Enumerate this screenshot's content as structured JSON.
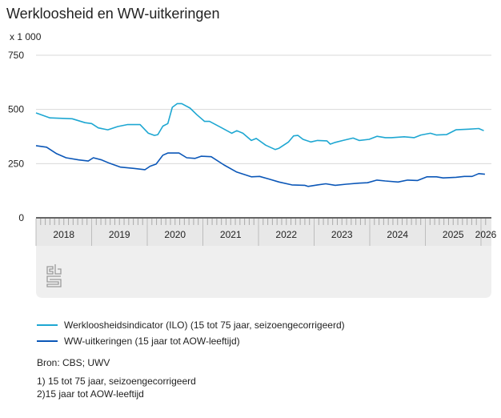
{
  "title": "Werkloosheid en WW-uitkeringen",
  "source": "Bron: CBS; UWV",
  "footnotes": [
    "1) 15 tot 75 jaar, seizoengecorrigeerd",
    "2)15 jaar tot AOW-leeftijd"
  ],
  "logo_text": "cbs",
  "chart_data": {
    "type": "line",
    "title": "Werkloosheid en WW-uitkeringen",
    "ylabel": "x 1 000",
    "ylim": [
      0,
      750
    ],
    "yticks": [
      0,
      250,
      500,
      750
    ],
    "ytick_labels": [
      "0",
      "250",
      "500",
      "750"
    ],
    "xlim": [
      2018.0,
      2026.1
    ],
    "xtick_labels": [
      "2018",
      "2019",
      "2020",
      "2021",
      "2022",
      "2023",
      "2024",
      "2025",
      "2026"
    ],
    "grid": true,
    "legend_position": "bottom",
    "series": [
      {
        "name": "Werkloosheidsindicator (ILO) (15 tot 75 jaar, seizoengecorrigeerd)",
        "color": "#1ea7d2",
        "x": [
          2018.0,
          2018.25,
          2018.65,
          2018.88,
          2019.0,
          2019.12,
          2019.29,
          2019.47,
          2019.64,
          2019.87,
          2020.02,
          2020.13,
          2020.19,
          2020.28,
          2020.37,
          2020.45,
          2020.54,
          2020.62,
          2020.77,
          2020.89,
          2021.03,
          2021.12,
          2021.32,
          2021.52,
          2021.61,
          2021.72,
          2021.87,
          2021.96,
          2022.13,
          2022.3,
          2022.37,
          2022.54,
          2022.63,
          2022.71,
          2022.8,
          2022.94,
          2023.06,
          2023.23,
          2023.29,
          2023.38,
          2023.52,
          2023.7,
          2023.81,
          2023.99,
          2024.13,
          2024.28,
          2024.39,
          2024.62,
          2024.8,
          2024.92,
          2025.09,
          2025.2,
          2025.38,
          2025.55,
          2025.78,
          2025.96,
          2026.05
        ],
        "values": [
          484,
          461,
          457,
          439,
          435,
          415,
          406,
          421,
          430,
          430,
          390,
          380,
          384,
          423,
          435,
          510,
          527,
          527,
          506,
          476,
          445,
          445,
          418,
          390,
          402,
          390,
          357,
          366,
          335,
          315,
          321,
          350,
          378,
          380,
          362,
          350,
          357,
          355,
          340,
          348,
          357,
          368,
          357,
          362,
          376,
          370,
          370,
          374,
          370,
          382,
          390,
          382,
          384,
          406,
          409,
          412,
          402
        ]
      },
      {
        "name": "WW-uitkeringen (15 jaar tot AOW-leeftijd)",
        "color": "#0b57b8",
        "x": [
          2018.0,
          2018.19,
          2018.37,
          2018.54,
          2018.77,
          2018.94,
          2019.03,
          2019.18,
          2019.32,
          2019.52,
          2019.76,
          2019.96,
          2020.05,
          2020.16,
          2020.28,
          2020.37,
          2020.57,
          2020.71,
          2020.86,
          2020.97,
          2021.15,
          2021.38,
          2021.61,
          2021.87,
          2022.02,
          2022.19,
          2022.37,
          2022.6,
          2022.83,
          2022.89,
          2023.06,
          2023.21,
          2023.38,
          2023.58,
          2023.81,
          2023.96,
          2024.13,
          2024.28,
          2024.51,
          2024.68,
          2024.86,
          2025.03,
          2025.2,
          2025.32,
          2025.55,
          2025.7,
          2025.84,
          2025.96,
          2026.07
        ],
        "values": [
          333,
          326,
          296,
          277,
          267,
          262,
          277,
          267,
          252,
          234,
          228,
          222,
          238,
          248,
          289,
          299,
          299,
          277,
          274,
          284,
          282,
          244,
          211,
          189,
          191,
          179,
          165,
          152,
          150,
          145,
          152,
          157,
          150,
          155,
          160,
          162,
          174,
          170,
          165,
          174,
          172,
          189,
          189,
          184,
          187,
          191,
          191,
          204,
          201
        ]
      }
    ]
  }
}
